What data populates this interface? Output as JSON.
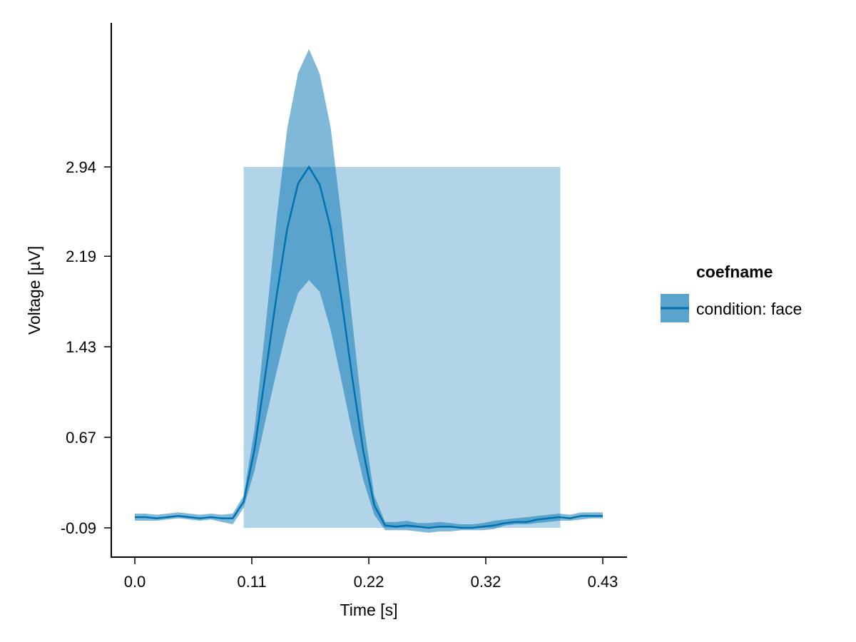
{
  "chart_data": {
    "type": "line",
    "title": "",
    "xlabel": "Time [s]",
    "ylabel": "Voltage [µV]",
    "xlim": [
      0.0,
      0.43
    ],
    "ylim": [
      -0.09,
      2.94
    ],
    "xticks": [
      "0.0",
      "0.11",
      "0.22",
      "0.32",
      "0.43"
    ],
    "xtick_values": [
      0.0,
      0.1075,
      0.215,
      0.3225,
      0.43
    ],
    "yticks": [
      "-0.09",
      "0.67",
      "1.43",
      "2.19",
      "2.94"
    ],
    "ytick_values": [
      -0.09,
      0.67,
      1.43,
      2.19,
      2.94
    ],
    "grid": false,
    "legend": {
      "title": "coefname",
      "position": "right",
      "entries": [
        {
          "label": "condition: face",
          "color": "#0072b2"
        }
      ]
    },
    "highlight_region": {
      "x_start": 0.1,
      "x_end": 0.391,
      "y_start": -0.09,
      "y_end": 2.94,
      "color": "#0072b2",
      "opacity": 0.3
    },
    "series": [
      {
        "name": "condition: face",
        "color": "#0072b2",
        "x": [
          0.0,
          0.01,
          0.02,
          0.03,
          0.04,
          0.05,
          0.06,
          0.07,
          0.08,
          0.09,
          0.1,
          0.11,
          0.12,
          0.13,
          0.14,
          0.15,
          0.16,
          0.17,
          0.18,
          0.19,
          0.2,
          0.21,
          0.22,
          0.23,
          0.24,
          0.25,
          0.26,
          0.27,
          0.28,
          0.29,
          0.3,
          0.31,
          0.32,
          0.33,
          0.34,
          0.35,
          0.36,
          0.37,
          0.38,
          0.39,
          0.4,
          0.41,
          0.42,
          0.43
        ],
        "mean": [
          0.0,
          0.0,
          -0.01,
          0.0,
          0.01,
          0.0,
          -0.01,
          0.0,
          -0.01,
          -0.01,
          0.13,
          0.57,
          1.2,
          1.84,
          2.42,
          2.8,
          2.94,
          2.79,
          2.42,
          1.82,
          1.16,
          0.55,
          0.1,
          -0.07,
          -0.08,
          -0.07,
          -0.08,
          -0.09,
          -0.08,
          -0.08,
          -0.09,
          -0.09,
          -0.08,
          -0.07,
          -0.05,
          -0.04,
          -0.04,
          -0.02,
          -0.01,
          0.0,
          -0.01,
          0.01,
          0.01,
          0.01
        ],
        "lower": [
          -0.03,
          -0.03,
          -0.03,
          -0.02,
          -0.01,
          -0.02,
          -0.03,
          -0.02,
          -0.04,
          -0.06,
          0.08,
          0.39,
          0.81,
          1.21,
          1.59,
          1.88,
          1.99,
          1.89,
          1.57,
          1.14,
          0.7,
          0.31,
          0.02,
          -0.11,
          -0.11,
          -0.11,
          -0.12,
          -0.13,
          -0.12,
          -0.12,
          -0.11,
          -0.11,
          -0.11,
          -0.1,
          -0.07,
          -0.06,
          -0.06,
          -0.05,
          -0.04,
          -0.03,
          -0.03,
          -0.02,
          -0.01,
          -0.01
        ],
        "upper": [
          0.03,
          0.03,
          0.02,
          0.03,
          0.04,
          0.03,
          0.02,
          0.03,
          0.02,
          0.03,
          0.18,
          0.74,
          1.59,
          2.48,
          3.26,
          3.73,
          3.93,
          3.72,
          3.27,
          2.5,
          1.63,
          0.8,
          0.18,
          -0.04,
          -0.04,
          -0.03,
          -0.05,
          -0.05,
          -0.04,
          -0.05,
          -0.06,
          -0.06,
          -0.05,
          -0.03,
          -0.02,
          -0.01,
          0.0,
          0.01,
          0.02,
          0.03,
          0.02,
          0.04,
          0.04,
          0.04
        ]
      }
    ]
  }
}
